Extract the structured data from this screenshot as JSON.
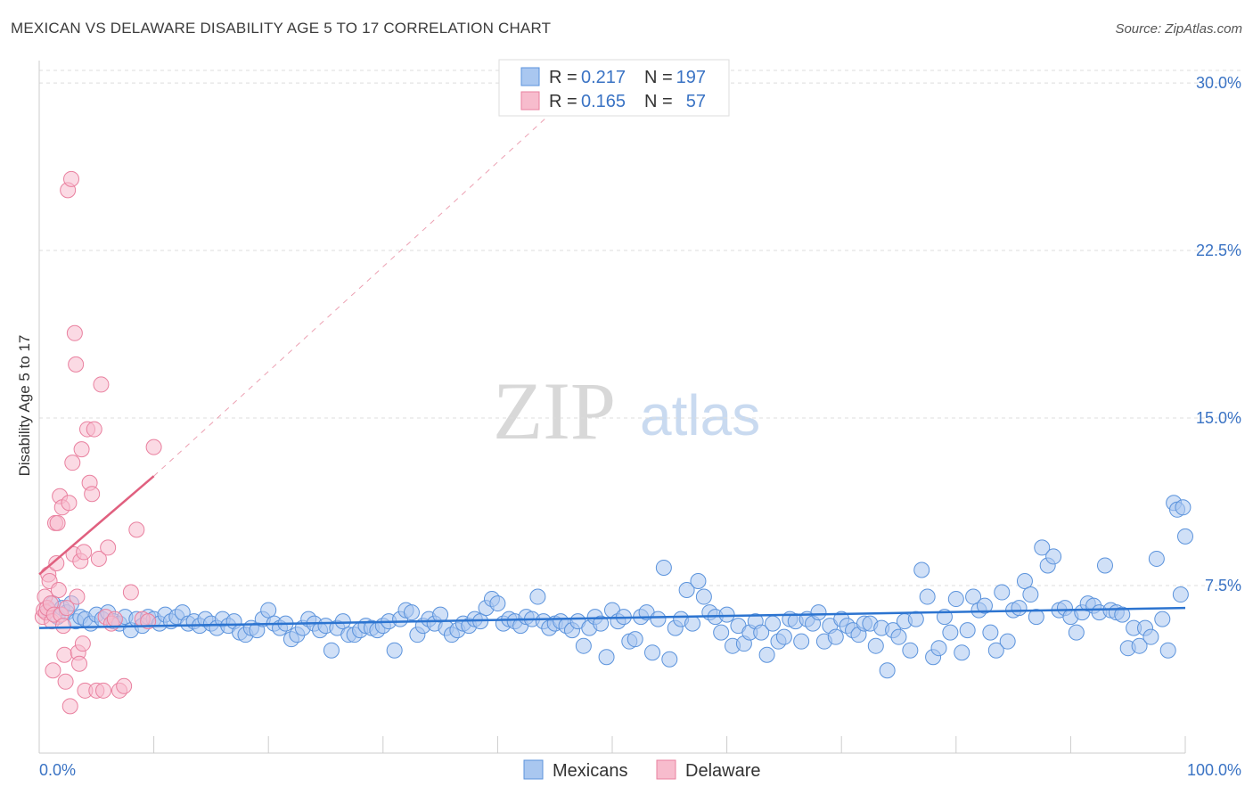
{
  "title": "MEXICAN VS DELAWARE DISABILITY AGE 5 TO 17 CORRELATION CHART",
  "source": "Source: ZipAtlas.com",
  "watermark": {
    "zip": "ZIP",
    "atlas": "atlas"
  },
  "colors": {
    "blue_fill": "#a9c7f0",
    "blue_stroke": "#5b93dc",
    "blue_line": "#2c74d0",
    "pink_fill": "#f7bccd",
    "pink_stroke": "#e9809f",
    "pink_line": "#e0607f",
    "grid": "#dddddd",
    "tick_text": "#3a73c4"
  },
  "chart_data": {
    "type": "scatter",
    "title": "MEXICAN VS DELAWARE DISABILITY AGE 5 TO 17 CORRELATION CHART",
    "xlabel": "",
    "ylabel": "Disability Age 5 to 17",
    "xlim": [
      0,
      100
    ],
    "ylim": [
      0,
      31
    ],
    "x_tick_labels": [
      "0.0%",
      "100.0%"
    ],
    "y_ticks": [
      7.5,
      15.0,
      22.5,
      30.0
    ],
    "y_tick_labels": [
      "7.5%",
      "15.0%",
      "22.5%",
      "30.0%"
    ],
    "legend": [
      {
        "name": "Mexicans",
        "r_label": "R =",
        "r": "0.217",
        "n_label": "N =",
        "n": "197"
      },
      {
        "name": "Delaware",
        "r_label": "R =",
        "r": "0.165",
        "n_label": "N =",
        "n": "57"
      }
    ],
    "trendlines": [
      {
        "series": "Mexicans",
        "x": [
          0,
          100
        ],
        "y": [
          5.6,
          6.5
        ],
        "style": "solid"
      },
      {
        "series": "Delaware",
        "x": [
          0,
          10
        ],
        "y": [
          8.0,
          12.4
        ],
        "style": "solid"
      },
      {
        "series": "Delaware",
        "x": [
          10,
          45
        ],
        "y": [
          12.4,
          28.8
        ],
        "style": "dashed"
      }
    ],
    "series": [
      {
        "name": "Mexicans",
        "points": [
          [
            0.8,
            6.4
          ],
          [
            1.2,
            6.7
          ],
          [
            1.6,
            6.1
          ],
          [
            2.0,
            6.5
          ],
          [
            2.4,
            6.3
          ],
          [
            2.8,
            6.7
          ],
          [
            3.2,
            5.9
          ],
          [
            3.6,
            6.1
          ],
          [
            4.0,
            6.0
          ],
          [
            4.5,
            5.8
          ],
          [
            5.0,
            6.2
          ],
          [
            5.5,
            6.0
          ],
          [
            6.0,
            6.3
          ],
          [
            6.5,
            5.9
          ],
          [
            7.0,
            5.8
          ],
          [
            7.5,
            6.1
          ],
          [
            8.0,
            5.5
          ],
          [
            8.5,
            6.0
          ],
          [
            9.0,
            5.7
          ],
          [
            9.5,
            6.1
          ],
          [
            10.0,
            6.0
          ],
          [
            10.5,
            5.8
          ],
          [
            11.0,
            6.2
          ],
          [
            11.5,
            5.9
          ],
          [
            12.0,
            6.1
          ],
          [
            12.5,
            6.3
          ],
          [
            13.0,
            5.8
          ],
          [
            13.5,
            5.9
          ],
          [
            14.0,
            5.7
          ],
          [
            14.5,
            6.0
          ],
          [
            15.0,
            5.8
          ],
          [
            15.5,
            5.6
          ],
          [
            16.0,
            6.0
          ],
          [
            16.5,
            5.7
          ],
          [
            17.0,
            5.9
          ],
          [
            17.5,
            5.4
          ],
          [
            18.0,
            5.3
          ],
          [
            18.5,
            5.6
          ],
          [
            19.0,
            5.5
          ],
          [
            19.5,
            6.0
          ],
          [
            20.0,
            6.4
          ],
          [
            20.5,
            5.8
          ],
          [
            21.0,
            5.6
          ],
          [
            21.5,
            5.8
          ],
          [
            22.0,
            5.1
          ],
          [
            22.5,
            5.3
          ],
          [
            23.0,
            5.6
          ],
          [
            23.5,
            6.0
          ],
          [
            24.0,
            5.8
          ],
          [
            24.5,
            5.5
          ],
          [
            25.0,
            5.7
          ],
          [
            25.5,
            4.6
          ],
          [
            26.0,
            5.6
          ],
          [
            26.5,
            5.9
          ],
          [
            27.0,
            5.3
          ],
          [
            27.5,
            5.3
          ],
          [
            28.0,
            5.5
          ],
          [
            28.5,
            5.7
          ],
          [
            29.0,
            5.6
          ],
          [
            29.5,
            5.5
          ],
          [
            30.0,
            5.7
          ],
          [
            30.5,
            5.9
          ],
          [
            31.0,
            4.6
          ],
          [
            31.5,
            6.0
          ],
          [
            32.0,
            6.4
          ],
          [
            32.5,
            6.3
          ],
          [
            33.0,
            5.3
          ],
          [
            33.5,
            5.7
          ],
          [
            34.0,
            6.0
          ],
          [
            34.5,
            5.8
          ],
          [
            35.0,
            6.2
          ],
          [
            35.5,
            5.6
          ],
          [
            36.0,
            5.3
          ],
          [
            36.5,
            5.5
          ],
          [
            37.0,
            5.8
          ],
          [
            37.5,
            5.7
          ],
          [
            38.0,
            6.0
          ],
          [
            38.5,
            5.9
          ],
          [
            39.0,
            6.5
          ],
          [
            39.5,
            6.9
          ],
          [
            40.0,
            6.7
          ],
          [
            40.5,
            5.8
          ],
          [
            41.0,
            6.0
          ],
          [
            41.5,
            5.9
          ],
          [
            42.0,
            5.7
          ],
          [
            42.5,
            6.1
          ],
          [
            43.0,
            6.0
          ],
          [
            43.5,
            7.0
          ],
          [
            44.0,
            5.9
          ],
          [
            44.5,
            5.6
          ],
          [
            45.0,
            5.8
          ],
          [
            45.5,
            5.9
          ],
          [
            46.0,
            5.7
          ],
          [
            46.5,
            5.5
          ],
          [
            47.0,
            5.9
          ],
          [
            47.5,
            4.8
          ],
          [
            48.0,
            5.6
          ],
          [
            48.5,
            6.1
          ],
          [
            49.0,
            5.8
          ],
          [
            49.5,
            4.3
          ],
          [
            50.0,
            6.4
          ],
          [
            50.5,
            5.9
          ],
          [
            51.0,
            6.1
          ],
          [
            51.5,
            5.0
          ],
          [
            52.0,
            5.1
          ],
          [
            52.5,
            6.1
          ],
          [
            53.0,
            6.3
          ],
          [
            53.5,
            4.5
          ],
          [
            54.0,
            6.0
          ],
          [
            54.5,
            8.3
          ],
          [
            55.0,
            4.2
          ],
          [
            55.5,
            5.6
          ],
          [
            56.0,
            6.0
          ],
          [
            56.5,
            7.3
          ],
          [
            57.0,
            5.8
          ],
          [
            57.5,
            7.7
          ],
          [
            58.0,
            7.0
          ],
          [
            58.5,
            6.3
          ],
          [
            59.0,
            6.1
          ],
          [
            59.5,
            5.4
          ],
          [
            60.0,
            6.2
          ],
          [
            60.5,
            4.8
          ],
          [
            61.0,
            5.7
          ],
          [
            61.5,
            4.9
          ],
          [
            62.0,
            5.4
          ],
          [
            62.5,
            5.9
          ],
          [
            63.0,
            5.4
          ],
          [
            63.5,
            4.4
          ],
          [
            64.0,
            5.8
          ],
          [
            64.5,
            5.0
          ],
          [
            65.0,
            5.2
          ],
          [
            65.5,
            6.0
          ],
          [
            66.0,
            5.9
          ],
          [
            66.5,
            5.0
          ],
          [
            67.0,
            6.0
          ],
          [
            67.5,
            5.8
          ],
          [
            68.0,
            6.3
          ],
          [
            68.5,
            5.0
          ],
          [
            69.0,
            5.7
          ],
          [
            69.5,
            5.2
          ],
          [
            70.0,
            6.0
          ],
          [
            70.5,
            5.7
          ],
          [
            71.0,
            5.5
          ],
          [
            71.5,
            5.3
          ],
          [
            72.0,
            5.8
          ],
          [
            72.5,
            5.8
          ],
          [
            73.0,
            4.8
          ],
          [
            73.5,
            5.6
          ],
          [
            74.0,
            3.7
          ],
          [
            74.5,
            5.5
          ],
          [
            75.0,
            5.2
          ],
          [
            75.5,
            5.9
          ],
          [
            76.0,
            4.6
          ],
          [
            76.5,
            6.0
          ],
          [
            77.0,
            8.2
          ],
          [
            77.5,
            7.0
          ],
          [
            78.0,
            4.3
          ],
          [
            78.5,
            4.7
          ],
          [
            79.0,
            6.1
          ],
          [
            79.5,
            5.4
          ],
          [
            80.0,
            6.9
          ],
          [
            80.5,
            4.5
          ],
          [
            81.0,
            5.5
          ],
          [
            81.5,
            7.0
          ],
          [
            82.0,
            6.4
          ],
          [
            82.5,
            6.6
          ],
          [
            83.0,
            5.4
          ],
          [
            83.5,
            4.6
          ],
          [
            84.0,
            7.2
          ],
          [
            84.5,
            5.0
          ],
          [
            85.0,
            6.4
          ],
          [
            85.5,
            6.5
          ],
          [
            86.0,
            7.7
          ],
          [
            86.5,
            7.1
          ],
          [
            87.0,
            6.1
          ],
          [
            87.5,
            9.2
          ],
          [
            88.0,
            8.4
          ],
          [
            88.5,
            8.8
          ],
          [
            89.0,
            6.4
          ],
          [
            89.5,
            6.5
          ],
          [
            90.0,
            6.1
          ],
          [
            90.5,
            5.4
          ],
          [
            91.0,
            6.3
          ],
          [
            91.5,
            6.7
          ],
          [
            92.0,
            6.6
          ],
          [
            92.5,
            6.3
          ],
          [
            93.0,
            8.4
          ],
          [
            93.5,
            6.4
          ],
          [
            94.0,
            6.3
          ],
          [
            94.5,
            6.2
          ],
          [
            95.0,
            4.7
          ],
          [
            95.5,
            5.6
          ],
          [
            96.0,
            4.8
          ],
          [
            96.5,
            5.6
          ],
          [
            97.0,
            5.2
          ],
          [
            97.5,
            8.7
          ],
          [
            98.0,
            6.0
          ],
          [
            98.5,
            4.6
          ],
          [
            99.0,
            11.2
          ],
          [
            99.3,
            10.9
          ],
          [
            99.6,
            7.1
          ],
          [
            99.8,
            11.0
          ],
          [
            100.0,
            9.7
          ]
        ]
      },
      {
        "name": "Delaware",
        "points": [
          [
            0.3,
            6.1
          ],
          [
            0.4,
            6.4
          ],
          [
            0.5,
            7.0
          ],
          [
            0.6,
            6.3
          ],
          [
            0.7,
            6.5
          ],
          [
            0.8,
            8.0
          ],
          [
            0.9,
            7.7
          ],
          [
            1.0,
            6.7
          ],
          [
            1.1,
            5.9
          ],
          [
            1.2,
            3.7
          ],
          [
            1.3,
            6.2
          ],
          [
            1.4,
            10.3
          ],
          [
            1.5,
            8.5
          ],
          [
            1.6,
            10.3
          ],
          [
            1.7,
            7.3
          ],
          [
            1.8,
            11.5
          ],
          [
            1.9,
            6.2
          ],
          [
            2.0,
            11.0
          ],
          [
            2.1,
            5.7
          ],
          [
            2.2,
            4.4
          ],
          [
            2.3,
            3.2
          ],
          [
            2.4,
            6.5
          ],
          [
            2.5,
            25.2
          ],
          [
            2.6,
            11.2
          ],
          [
            2.7,
            2.1
          ],
          [
            2.8,
            25.7
          ],
          [
            2.9,
            13.0
          ],
          [
            3.0,
            8.9
          ],
          [
            3.1,
            18.8
          ],
          [
            3.2,
            17.4
          ],
          [
            3.3,
            7.0
          ],
          [
            3.4,
            4.5
          ],
          [
            3.5,
            4.0
          ],
          [
            3.6,
            8.6
          ],
          [
            3.7,
            13.6
          ],
          [
            3.8,
            4.9
          ],
          [
            3.9,
            9.0
          ],
          [
            4.0,
            2.8
          ],
          [
            4.2,
            14.5
          ],
          [
            4.4,
            12.1
          ],
          [
            4.6,
            11.6
          ],
          [
            4.8,
            14.5
          ],
          [
            5.0,
            2.8
          ],
          [
            5.2,
            8.7
          ],
          [
            5.4,
            16.5
          ],
          [
            5.6,
            2.8
          ],
          [
            5.8,
            6.1
          ],
          [
            6.0,
            9.2
          ],
          [
            6.3,
            5.8
          ],
          [
            6.6,
            6.0
          ],
          [
            7.0,
            2.8
          ],
          [
            7.4,
            3.0
          ],
          [
            8.0,
            7.2
          ],
          [
            8.5,
            10.0
          ],
          [
            9.0,
            6.0
          ],
          [
            9.5,
            5.9
          ],
          [
            10.0,
            13.7
          ]
        ]
      }
    ]
  }
}
